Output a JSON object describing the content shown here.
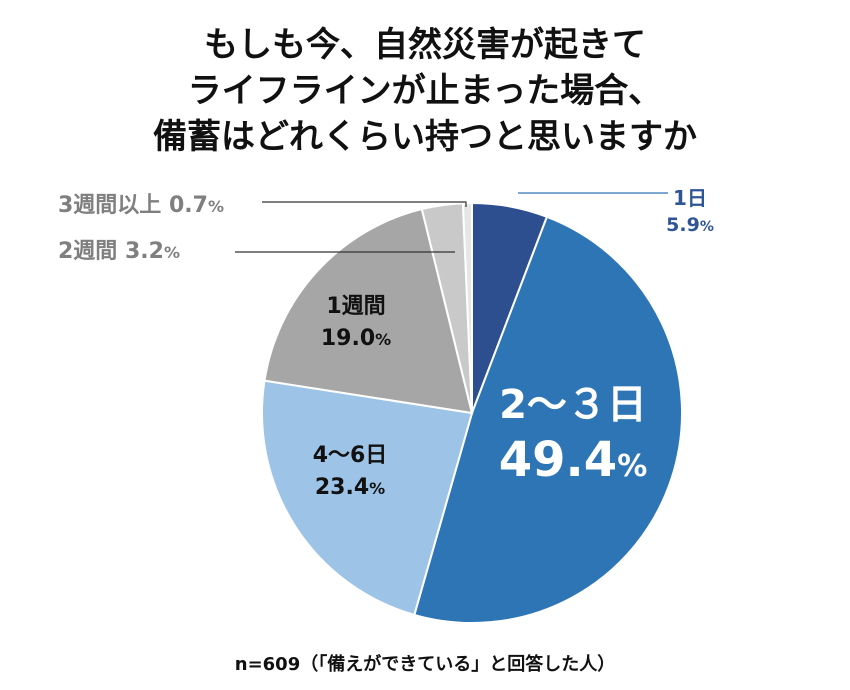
{
  "title_lines": [
    "もしも今、自然災害が起きて",
    "ライフラインが止まった場合、",
    "備蓄はどれくらい持つと思いますか"
  ],
  "note": "n=609（「備えができている」と回答した人）",
  "chart_data": {
    "type": "pie",
    "start": "12 o'clock",
    "direction": "clockwise",
    "slices": [
      {
        "label": "1日",
        "value": 5.9,
        "display": "5.9",
        "unit": "%",
        "color": "#2E4F8F",
        "label_color": "#2F5597"
      },
      {
        "label": "2～３日",
        "value": 49.4,
        "display": "49.4",
        "unit": "%",
        "color": "#2E75B6",
        "label_color": "#FFFFFF"
      },
      {
        "label": "4～6日",
        "value": 23.4,
        "display": "23.4",
        "unit": "%",
        "color": "#9DC3E6",
        "label_color": "#111111"
      },
      {
        "label": "1週間",
        "value": 19.0,
        "display": "19.0",
        "unit": "%",
        "color": "#A6A6A6",
        "label_color": "#111111"
      },
      {
        "label": "2週間",
        "value": 3.2,
        "display": "3.2",
        "unit": "%",
        "color": "#C9C9C9",
        "label_color": "#7F7F7F"
      },
      {
        "label": "3週間以上",
        "value": 0.7,
        "display": "0.7",
        "unit": "%",
        "color": "#E7E6E6",
        "label_color": "#7F7F7F"
      }
    ]
  }
}
